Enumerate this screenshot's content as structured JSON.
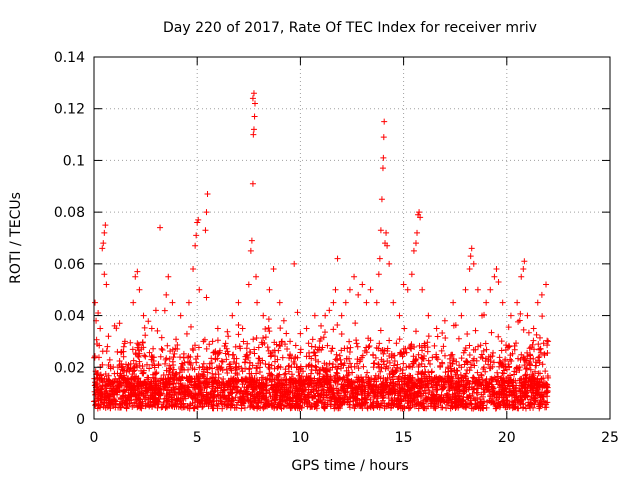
{
  "chart_data": {
    "type": "scatter",
    "title": "Day 220 of 2017, Rate Of TEC Index for receiver mriv",
    "xlabel": "GPS time / hours",
    "ylabel": "ROTI / TECUs",
    "xlim": [
      0,
      25
    ],
    "ylim": [
      0,
      0.14
    ],
    "xticks": [
      0,
      5,
      10,
      15,
      20,
      25
    ],
    "yticks": [
      0,
      0.02,
      0.04,
      0.06,
      0.08,
      0.1,
      0.12,
      0.14
    ],
    "xtick_labels": [
      "0",
      "5",
      "10",
      "15",
      "20",
      "25"
    ],
    "ytick_labels": [
      "0",
      "0.02",
      "0.04",
      "0.06",
      "0.08",
      "0.1",
      "0.12",
      "0.14"
    ],
    "grid": true,
    "marker": "+",
    "color": "#ff0000",
    "data_extent_x": [
      0,
      22
    ],
    "series": [
      {
        "name": "ROTI",
        "points": [
          [
            0.05,
            0.045
          ],
          [
            0.1,
            0.038
          ],
          [
            0.15,
            0.029
          ],
          [
            0.2,
            0.041
          ],
          [
            0.3,
            0.035
          ],
          [
            0.4,
            0.066
          ],
          [
            0.45,
            0.068
          ],
          [
            0.5,
            0.072
          ],
          [
            0.55,
            0.075
          ],
          [
            0.5,
            0.056
          ],
          [
            0.6,
            0.052
          ],
          [
            0.7,
            0.032
          ],
          [
            1.0,
            0.036
          ],
          [
            1.5,
            0.03
          ],
          [
            1.9,
            0.045
          ],
          [
            2.0,
            0.055
          ],
          [
            2.1,
            0.057
          ],
          [
            2.2,
            0.05
          ],
          [
            2.4,
            0.04
          ],
          [
            2.8,
            0.035
          ],
          [
            3.0,
            0.042
          ],
          [
            3.2,
            0.074
          ],
          [
            3.5,
            0.048
          ],
          [
            3.6,
            0.055
          ],
          [
            3.8,
            0.045
          ],
          [
            4.2,
            0.04
          ],
          [
            4.6,
            0.045
          ],
          [
            4.8,
            0.058
          ],
          [
            4.9,
            0.067
          ],
          [
            4.95,
            0.071
          ],
          [
            5.0,
            0.076
          ],
          [
            5.05,
            0.077
          ],
          [
            5.1,
            0.05
          ],
          [
            5.3,
            0.03
          ],
          [
            5.4,
            0.073
          ],
          [
            5.45,
            0.08
          ],
          [
            5.5,
            0.087
          ],
          [
            5.45,
            0.047
          ],
          [
            6.0,
            0.035
          ],
          [
            6.5,
            0.032
          ],
          [
            6.7,
            0.04
          ],
          [
            7.0,
            0.045
          ],
          [
            7.2,
            0.035
          ],
          [
            7.5,
            0.052
          ],
          [
            7.6,
            0.065
          ],
          [
            7.65,
            0.069
          ],
          [
            7.7,
            0.091
          ],
          [
            7.72,
            0.11
          ],
          [
            7.75,
            0.112
          ],
          [
            7.78,
            0.117
          ],
          [
            7.7,
            0.124
          ],
          [
            7.75,
            0.126
          ],
          [
            7.8,
            0.122
          ],
          [
            7.85,
            0.055
          ],
          [
            7.9,
            0.045
          ],
          [
            8.2,
            0.04
          ],
          [
            8.5,
            0.05
          ],
          [
            8.7,
            0.058
          ],
          [
            9.0,
            0.045
          ],
          [
            9.2,
            0.038
          ],
          [
            9.5,
            0.03
          ],
          [
            9.7,
            0.06
          ],
          [
            10.0,
            0.033
          ],
          [
            10.3,
            0.035
          ],
          [
            10.7,
            0.04
          ],
          [
            11.0,
            0.036
          ],
          [
            11.2,
            0.04
          ],
          [
            11.4,
            0.042
          ],
          [
            11.6,
            0.045
          ],
          [
            11.7,
            0.05
          ],
          [
            11.8,
            0.062
          ],
          [
            12.0,
            0.04
          ],
          [
            12.2,
            0.045
          ],
          [
            12.4,
            0.05
          ],
          [
            12.6,
            0.055
          ],
          [
            12.8,
            0.048
          ],
          [
            13.0,
            0.052
          ],
          [
            13.2,
            0.045
          ],
          [
            13.4,
            0.05
          ],
          [
            13.7,
            0.045
          ],
          [
            13.8,
            0.056
          ],
          [
            13.85,
            0.062
          ],
          [
            13.9,
            0.073
          ],
          [
            13.95,
            0.085
          ],
          [
            14.0,
            0.097
          ],
          [
            14.02,
            0.101
          ],
          [
            14.04,
            0.109
          ],
          [
            14.06,
            0.115
          ],
          [
            14.1,
            0.068
          ],
          [
            14.15,
            0.072
          ],
          [
            14.2,
            0.067
          ],
          [
            14.3,
            0.06
          ],
          [
            14.5,
            0.045
          ],
          [
            14.8,
            0.04
          ],
          [
            15.0,
            0.052
          ],
          [
            15.2,
            0.05
          ],
          [
            15.4,
            0.056
          ],
          [
            15.5,
            0.065
          ],
          [
            15.6,
            0.068
          ],
          [
            15.65,
            0.072
          ],
          [
            15.7,
            0.079
          ],
          [
            15.75,
            0.08
          ],
          [
            15.8,
            0.078
          ],
          [
            15.9,
            0.05
          ],
          [
            16.2,
            0.04
          ],
          [
            16.6,
            0.035
          ],
          [
            17.0,
            0.038
          ],
          [
            17.4,
            0.045
          ],
          [
            17.8,
            0.04
          ],
          [
            18.0,
            0.05
          ],
          [
            18.2,
            0.058
          ],
          [
            18.25,
            0.063
          ],
          [
            18.3,
            0.066
          ],
          [
            18.4,
            0.06
          ],
          [
            18.6,
            0.05
          ],
          [
            18.8,
            0.04
          ],
          [
            19.0,
            0.045
          ],
          [
            19.2,
            0.05
          ],
          [
            19.4,
            0.055
          ],
          [
            19.5,
            0.058
          ],
          [
            19.6,
            0.053
          ],
          [
            19.8,
            0.045
          ],
          [
            20.2,
            0.04
          ],
          [
            20.5,
            0.045
          ],
          [
            20.7,
            0.055
          ],
          [
            20.8,
            0.058
          ],
          [
            20.85,
            0.061
          ],
          [
            21.0,
            0.04
          ],
          [
            21.3,
            0.035
          ],
          [
            21.5,
            0.045
          ],
          [
            21.7,
            0.048
          ],
          [
            21.9,
            0.052
          ],
          [
            22.0,
            0.03
          ]
        ]
      }
    ]
  }
}
